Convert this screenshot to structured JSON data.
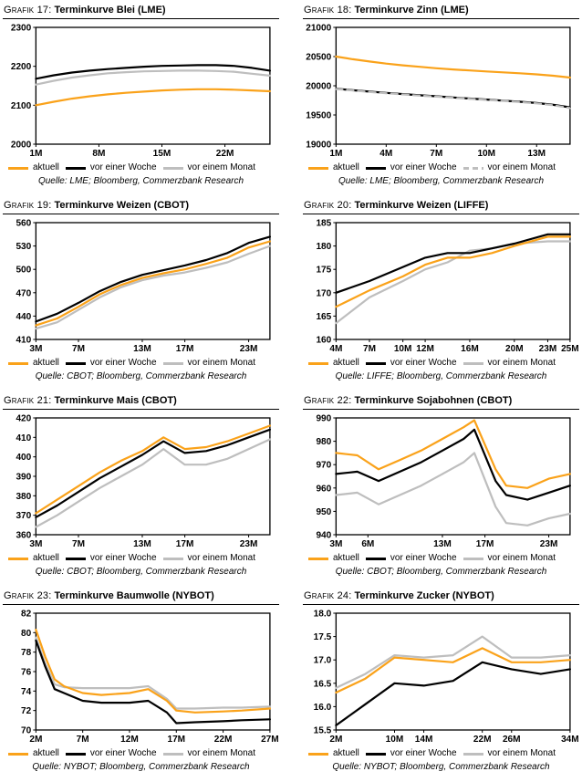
{
  "page": {
    "background": "#ffffff"
  },
  "colors": {
    "aktuell": "#FAA21A",
    "vor_einer_woche": "#000000",
    "vor_einem_monat": "#BEBEBE"
  },
  "chart_data": [
    {
      "type": "line",
      "number_label": "Grafik 17:",
      "title": "Terminkurve Blei (LME)",
      "source": "Quelle: LME; Bloomberg, Commerzbank Research",
      "xlim": [
        1,
        27
      ],
      "ylim": [
        2000,
        2300
      ],
      "xticks": [
        1,
        8,
        15,
        22
      ],
      "xtick_labels": [
        "1M",
        "8M",
        "15M",
        "22M"
      ],
      "yticks": [
        2000,
        2100,
        2200,
        2300
      ],
      "ytick_decimals": 0,
      "x": [
        1,
        3,
        5,
        7,
        9,
        11,
        13,
        15,
        17,
        19,
        21,
        23,
        25,
        27
      ],
      "series": [
        {
          "key": "aktuell",
          "name": "aktuell",
          "color": "#FAA21A",
          "values": [
            2100,
            2109,
            2117,
            2123,
            2128,
            2132,
            2135,
            2138,
            2140,
            2141,
            2141,
            2140,
            2138,
            2136
          ]
        },
        {
          "key": "woche",
          "name": "vor einer Woche",
          "color": "#000000",
          "values": [
            2168,
            2177,
            2184,
            2189,
            2193,
            2196,
            2199,
            2201,
            2202,
            2203,
            2203,
            2201,
            2196,
            2189
          ]
        },
        {
          "key": "monat",
          "name": "vor einem Monat",
          "color": "#BEBEBE",
          "values": [
            2153,
            2163,
            2171,
            2177,
            2182,
            2185,
            2187,
            2188,
            2189,
            2189,
            2188,
            2186,
            2181,
            2176
          ]
        }
      ]
    },
    {
      "type": "line",
      "number_label": "Grafik 18:",
      "title": "Terminkurve Zinn (LME)",
      "source": "Quelle: LME; Bloomberg, Commerzbank Research",
      "xlim": [
        1,
        15
      ],
      "ylim": [
        19000,
        21000
      ],
      "xticks": [
        1,
        4,
        7,
        10,
        13
      ],
      "xtick_labels": [
        "1M",
        "4M",
        "7M",
        "10M",
        "13M"
      ],
      "yticks": [
        19000,
        19500,
        20000,
        20500,
        21000
      ],
      "ytick_decimals": 0,
      "x": [
        1,
        2,
        3,
        4,
        5,
        6,
        7,
        8,
        9,
        10,
        11,
        12,
        13,
        14,
        15
      ],
      "series": [
        {
          "key": "aktuell",
          "name": "aktuell",
          "color": "#FAA21A",
          "values": [
            20500,
            20455,
            20415,
            20380,
            20350,
            20325,
            20300,
            20280,
            20262,
            20246,
            20230,
            20214,
            20196,
            20172,
            20140
          ]
        },
        {
          "key": "woche",
          "name": "vor einer Woche",
          "color": "#000000",
          "values": [
            19950,
            19924,
            19900,
            19878,
            19858,
            19838,
            19820,
            19800,
            19782,
            19764,
            19746,
            19726,
            19704,
            19674,
            19632
          ]
        },
        {
          "key": "monat",
          "name": "vor einem Monat",
          "color": "#BEBEBE",
          "dash": true,
          "values": [
            19944,
            19918,
            19894,
            19872,
            19852,
            19832,
            19814,
            19794,
            19776,
            19758,
            19740,
            19720,
            19698,
            19666,
            19618
          ]
        }
      ]
    },
    {
      "type": "line",
      "number_label": "Grafik 19:",
      "title": "Terminkurve Weizen (CBOT)",
      "source": "Quelle: CBOT; Bloomberg, Commerzbank Research",
      "xlim": [
        3,
        25
      ],
      "ylim": [
        410,
        560
      ],
      "xticks": [
        3,
        7,
        13,
        17,
        23
      ],
      "xtick_labels": [
        "3M",
        "7M",
        "13M",
        "17M",
        "23M"
      ],
      "yticks": [
        410,
        440,
        470,
        500,
        530,
        560
      ],
      "ytick_decimals": 0,
      "x": [
        3,
        5,
        7,
        9,
        11,
        13,
        15,
        17,
        19,
        21,
        23,
        25
      ],
      "series": [
        {
          "key": "aktuell",
          "name": "aktuell",
          "color": "#FAA21A",
          "values": [
            428,
            437,
            452,
            468,
            480,
            489,
            495,
            500,
            507,
            515,
            528,
            536
          ]
        },
        {
          "key": "woche",
          "name": "vor einer Woche",
          "color": "#000000",
          "values": [
            433,
            443,
            457,
            472,
            484,
            493,
            499,
            505,
            512,
            521,
            534,
            542
          ]
        },
        {
          "key": "monat",
          "name": "vor einem Monat",
          "color": "#BEBEBE",
          "values": [
            424,
            432,
            448,
            464,
            477,
            486,
            492,
            496,
            502,
            509,
            520,
            530
          ]
        }
      ]
    },
    {
      "type": "line",
      "number_label": "Grafik 20:",
      "title": "Terminkurve Weizen (LIFFE)",
      "source": "Quelle: LIFFE; Bloomberg, Commerzbank Research",
      "xlim": [
        4,
        25
      ],
      "ylim": [
        160,
        185
      ],
      "xticks": [
        4,
        7,
        10,
        12,
        16,
        20,
        23,
        25
      ],
      "xtick_labels": [
        "4M",
        "7M",
        "10M",
        "12M",
        "16M",
        "20M",
        "23M",
        "25M"
      ],
      "yticks": [
        160,
        165,
        170,
        175,
        180,
        185
      ],
      "ytick_decimals": 0,
      "x": [
        4,
        7,
        10,
        12,
        14,
        16,
        18,
        20,
        23,
        25
      ],
      "series": [
        {
          "key": "aktuell",
          "name": "aktuell",
          "color": "#FAA21A",
          "values": [
            167,
            170.5,
            173.5,
            176,
            177.5,
            177.5,
            178.5,
            180,
            182,
            182
          ]
        },
        {
          "key": "woche",
          "name": "vor einer Woche",
          "color": "#000000",
          "values": [
            170,
            172.5,
            175.5,
            177.5,
            178.5,
            178.5,
            179.5,
            180.5,
            182.5,
            182.5
          ]
        },
        {
          "key": "monat",
          "name": "vor einem Monat",
          "color": "#BEBEBE",
          "values": [
            163.5,
            169,
            172.5,
            175,
            176.5,
            179,
            179.5,
            180.5,
            181,
            181
          ]
        }
      ]
    },
    {
      "type": "line",
      "number_label": "Grafik 21:",
      "title": "Terminkurve Mais (CBOT)",
      "source": "Quelle: CBOT; Bloomberg, Commerzbank Research",
      "xlim": [
        3,
        25
      ],
      "ylim": [
        360,
        420
      ],
      "xticks": [
        3,
        7,
        13,
        17,
        23
      ],
      "xtick_labels": [
        "3M",
        "7M",
        "13M",
        "17M",
        "23M"
      ],
      "yticks": [
        360,
        370,
        380,
        390,
        400,
        410,
        420
      ],
      "ytick_decimals": 0,
      "x": [
        3,
        5,
        7,
        9,
        11,
        13,
        15,
        17,
        19,
        21,
        23,
        25
      ],
      "series": [
        {
          "key": "aktuell",
          "name": "aktuell",
          "color": "#FAA21A",
          "values": [
            371,
            378,
            385,
            392,
            398,
            403,
            410,
            404,
            405,
            408,
            412,
            416
          ]
        },
        {
          "key": "woche",
          "name": "vor einer Woche",
          "color": "#000000",
          "values": [
            369,
            375,
            382,
            389,
            395,
            401,
            408,
            402,
            403,
            406,
            410,
            414
          ]
        },
        {
          "key": "monat",
          "name": "vor einem Monat",
          "color": "#BEBEBE",
          "values": [
            364,
            370,
            377,
            384,
            390,
            396,
            404,
            396,
            396,
            399,
            404,
            409
          ]
        }
      ]
    },
    {
      "type": "line",
      "number_label": "Grafik 22:",
      "title": "Terminkurve Sojabohnen (CBOT)",
      "source": "Quelle: CBOT; Bloomberg, Commerzbank Research",
      "xlim": [
        3,
        25
      ],
      "ylim": [
        940,
        990
      ],
      "xticks": [
        3,
        6,
        13,
        17,
        23
      ],
      "xtick_labels": [
        "3M",
        "6M",
        "13M",
        "17M",
        "23M"
      ],
      "yticks": [
        940,
        950,
        960,
        970,
        980,
        990
      ],
      "ytick_decimals": 0,
      "x": [
        3,
        5,
        7,
        9,
        11,
        13,
        15,
        16,
        18,
        19,
        21,
        23,
        25
      ],
      "series": [
        {
          "key": "aktuell",
          "name": "aktuell",
          "color": "#FAA21A",
          "values": [
            975,
            974,
            968,
            972,
            976,
            981,
            986,
            989,
            968,
            961,
            960,
            964,
            966
          ]
        },
        {
          "key": "woche",
          "name": "vor einer Woche",
          "color": "#000000",
          "values": [
            966,
            967,
            963,
            967,
            971,
            976,
            981,
            985,
            963,
            957,
            955,
            958,
            961
          ]
        },
        {
          "key": "monat",
          "name": "vor einem Monat",
          "color": "#BEBEBE",
          "values": [
            957,
            958,
            953,
            957,
            961,
            966,
            971,
            975,
            952,
            945,
            944,
            947,
            949
          ]
        }
      ]
    },
    {
      "type": "line",
      "number_label": "Grafik 23:",
      "title": "Terminkurve Baumwolle (NYBOT)",
      "source": "Quelle: NYBOT; Bloomberg, Commerzbank Research",
      "xlim": [
        2,
        27
      ],
      "ylim": [
        70,
        82
      ],
      "xticks": [
        2,
        7,
        12,
        17,
        22,
        27
      ],
      "xtick_labels": [
        "2M",
        "7M",
        "12M",
        "17M",
        "22M",
        "27M"
      ],
      "yticks": [
        70,
        72,
        74,
        76,
        78,
        80,
        82
      ],
      "ytick_decimals": 0,
      "x": [
        2,
        3,
        4,
        5,
        7,
        9,
        12,
        14,
        16,
        17,
        19,
        22,
        24,
        27
      ],
      "series": [
        {
          "key": "aktuell",
          "name": "aktuell",
          "color": "#FAA21A",
          "values": [
            80.3,
            77.5,
            75.2,
            74.5,
            73.8,
            73.6,
            73.8,
            74.2,
            73.0,
            72.0,
            71.8,
            71.9,
            72.0,
            72.2
          ]
        },
        {
          "key": "woche",
          "name": "vor einer Woche",
          "color": "#000000",
          "values": [
            79.2,
            76.5,
            74.2,
            73.8,
            73.0,
            72.8,
            72.8,
            73.0,
            71.8,
            70.7,
            70.8,
            70.9,
            71.0,
            71.1
          ]
        },
        {
          "key": "monat",
          "name": "vor einem Monat",
          "color": "#BEBEBE",
          "values": [
            79.5,
            76.8,
            74.7,
            74.4,
            74.3,
            74.3,
            74.3,
            74.5,
            73.2,
            72.2,
            72.2,
            72.3,
            72.3,
            72.4
          ]
        }
      ]
    },
    {
      "type": "line",
      "number_label": "Grafik 24:",
      "title": "Terminkurve Zucker (NYBOT)",
      "source": "Quelle: NYBOT; Bloomberg, Commerzbank Research",
      "xlim": [
        2,
        34
      ],
      "ylim": [
        15.5,
        18.0
      ],
      "xticks": [
        2,
        10,
        14,
        22,
        26,
        34
      ],
      "xtick_labels": [
        "2M",
        "10M",
        "14M",
        "22M",
        "26M",
        "34M"
      ],
      "yticks": [
        15.5,
        16.0,
        16.5,
        17.0,
        17.5,
        18.0
      ],
      "ytick_decimals": 1,
      "x": [
        2,
        6,
        10,
        14,
        18,
        22,
        26,
        30,
        34
      ],
      "series": [
        {
          "key": "aktuell",
          "name": "aktuell",
          "color": "#FAA21A",
          "values": [
            16.3,
            16.6,
            17.05,
            17.0,
            16.95,
            17.25,
            16.95,
            16.95,
            17.0
          ]
        },
        {
          "key": "woche",
          "name": "vor einer Woche",
          "color": "#000000",
          "values": [
            15.6,
            16.05,
            16.5,
            16.45,
            16.55,
            16.95,
            16.8,
            16.7,
            16.8
          ]
        },
        {
          "key": "monat",
          "name": "vor einem Monat",
          "color": "#BEBEBE",
          "values": [
            16.4,
            16.7,
            17.1,
            17.05,
            17.1,
            17.5,
            17.05,
            17.05,
            17.1
          ]
        }
      ]
    }
  ]
}
